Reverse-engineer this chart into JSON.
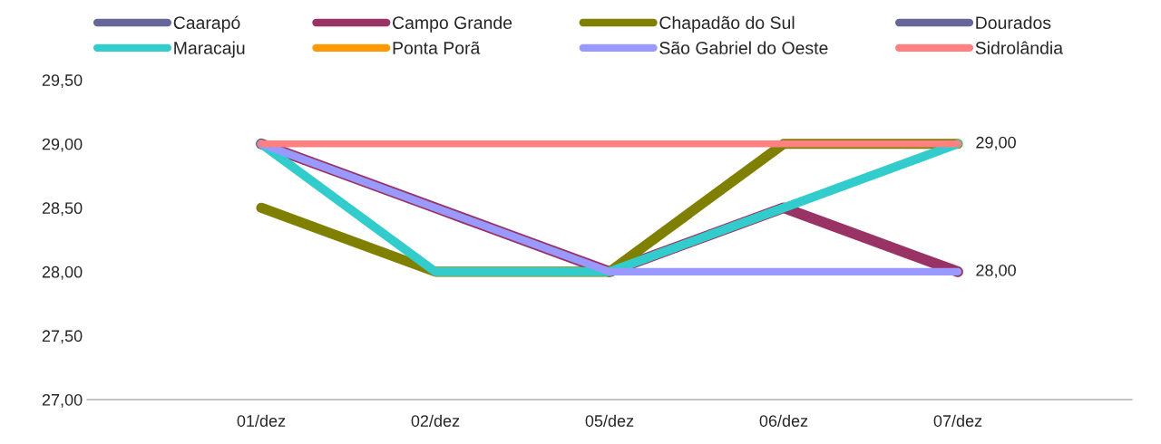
{
  "chart_data": {
    "type": "line",
    "categories": [
      "01/dez",
      "02/dez",
      "05/dez",
      "06/dez",
      "07/dez"
    ],
    "series": [
      {
        "name": "Caarapó",
        "color": "#666699",
        "values": [
          null,
          null,
          null,
          null,
          null
        ]
      },
      {
        "name": "Campo Grande",
        "color": "#993366",
        "values": [
          29,
          28.5,
          28,
          28.5,
          28
        ]
      },
      {
        "name": "Chapadão do Sul",
        "color": "#808000",
        "values": [
          28.5,
          28,
          28,
          29,
          29
        ]
      },
      {
        "name": "Dourados",
        "color": "#666699",
        "values": [
          null,
          null,
          null,
          null,
          null
        ]
      },
      {
        "name": "Maracaju",
        "color": "#33cccc",
        "values": [
          29,
          28,
          28,
          28.5,
          29
        ]
      },
      {
        "name": "Ponta Porã",
        "color": "#ff9900",
        "values": [
          null,
          null,
          null,
          null,
          null
        ]
      },
      {
        "name": "São Gabriel do Oeste",
        "color": "#9999ff",
        "values": [
          29,
          28.5,
          28,
          28,
          28
        ]
      },
      {
        "name": "Sidrolândia",
        "color": "#ff8080",
        "values": [
          29,
          29,
          29,
          29,
          29
        ]
      }
    ],
    "ylim": [
      27,
      29.5
    ],
    "yticks": [
      {
        "value": 27,
        "label": "27,00"
      },
      {
        "value": 27.5,
        "label": "27,50"
      },
      {
        "value": 28,
        "label": "28,00"
      },
      {
        "value": 28.5,
        "label": "28,50"
      },
      {
        "value": 29,
        "label": "29,00"
      },
      {
        "value": 29.5,
        "label": "29,50"
      }
    ],
    "annotations": [
      {
        "text": "29,00",
        "x": "07/dez",
        "y": 29
      },
      {
        "text": "28,00",
        "x": "07/dez",
        "y": 28
      }
    ],
    "legend": "top",
    "grid": false,
    "marker": "none",
    "line_style": "solid"
  }
}
